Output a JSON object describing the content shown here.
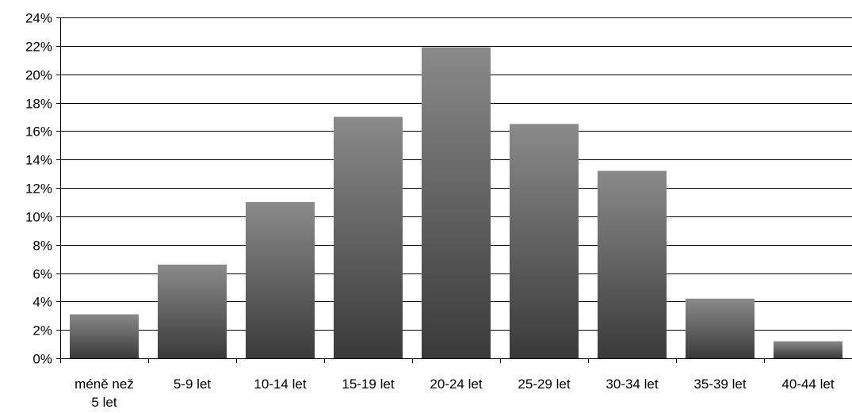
{
  "chart_data": {
    "type": "bar",
    "title": "",
    "xlabel": "",
    "ylabel": "",
    "categories": [
      [
        "méně než",
        "5 let"
      ],
      [
        "5-9 let"
      ],
      [
        "10-14 let"
      ],
      [
        "15-19 let"
      ],
      [
        "20-24 let"
      ],
      [
        "25-29 let"
      ],
      [
        "30-34 let"
      ],
      [
        "35-39 let"
      ],
      [
        "40-44 let"
      ]
    ],
    "values": [
      3.1,
      6.6,
      11.0,
      17.0,
      21.9,
      16.5,
      13.2,
      4.2,
      1.2
    ],
    "ylim": [
      0,
      24
    ],
    "y_ticks": [
      0,
      2,
      4,
      6,
      8,
      10,
      12,
      14,
      16,
      18,
      20,
      22,
      24
    ],
    "y_tick_format": "{}%",
    "grid": true,
    "legend": "none",
    "colors": {
      "bar_top": "#8a8a8a",
      "bar_bottom": "#3a3a3a",
      "grid": "#000000",
      "axis": "#000000",
      "text": "#000000"
    }
  }
}
